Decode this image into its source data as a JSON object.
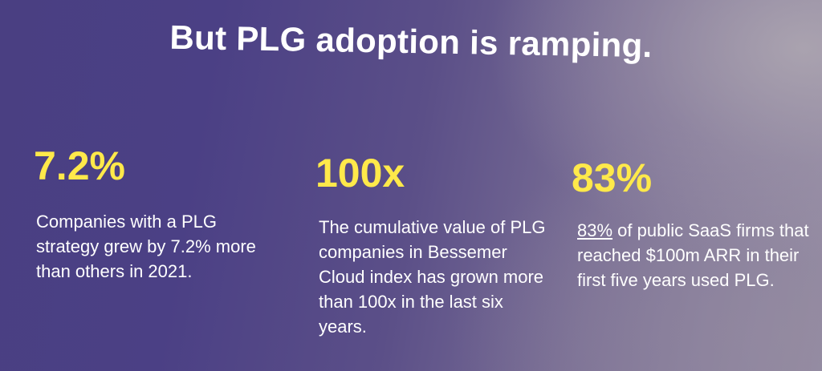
{
  "title": "But PLG adoption is ramping.",
  "stats": [
    {
      "value": "7.2%",
      "description": "Companies with a PLG strategy grew by 7.2% more than others in 2021."
    },
    {
      "value": "100x",
      "description": "The cumulative value of PLG companies in Bessemer Cloud index has grown more than 100x in the last six years."
    },
    {
      "value": "83%",
      "description_emphasis": "83%",
      "description": " of public SaaS firms that reached $100m ARR in their first five years used PLG."
    }
  ],
  "colors": {
    "stat_value": "#ffe94a",
    "text": "#ffffff",
    "background_left": "#4a3f82",
    "background_right": "#938ba3"
  }
}
